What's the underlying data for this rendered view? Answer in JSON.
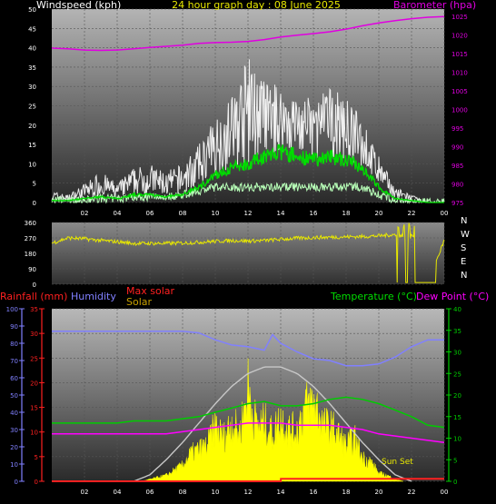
{
  "header": {
    "title": "24 hour graph day : 08 June 2025"
  },
  "colors": {
    "wind": "#ffffff",
    "gust_avg": "#00dd00",
    "light_wind": "#b8ffb8",
    "barometer": "#e000e0",
    "direction": "#e8e800",
    "rainfall": "#ff2020",
    "humidity": "#8080ff",
    "temperature": "#00cc00",
    "dew_point": "#ff00ff",
    "solar": "#ffff00",
    "max_solar": "#c8c8c8",
    "axis_text": "#ffffff"
  },
  "chart_data": [
    {
      "type": "line",
      "name": "wind",
      "left_axis_label": "Windspeed (kph)",
      "right_axis_label": "Barometer (hpa)",
      "x_ticks": [
        "02",
        "04",
        "06",
        "08",
        "10",
        "12",
        "14",
        "16",
        "18",
        "20",
        "22",
        "00"
      ],
      "left_ticks": [
        "0",
        "5",
        "10",
        "15",
        "20",
        "25",
        "30",
        "35",
        "40",
        "45",
        "50"
      ],
      "right_ticks": [
        "975",
        "980",
        "985",
        "990",
        "995",
        "1000",
        "1005",
        "1010",
        "1015",
        "1020",
        "1025"
      ],
      "ylim_left": [
        0,
        50
      ],
      "ylim_right": [
        975,
        1027
      ],
      "series": [
        {
          "key": "barometer",
          "axis": "right",
          "x": [
            0,
            1,
            2,
            3,
            4,
            5,
            6,
            7,
            8,
            9,
            10,
            11,
            12,
            13,
            14,
            15,
            16,
            17,
            18,
            19,
            20,
            21,
            22,
            23,
            24
          ],
          "values": [
            1016.5,
            1016.3,
            1016.0,
            1015.9,
            1016.0,
            1016.3,
            1016.7,
            1017.0,
            1017.3,
            1017.8,
            1018.0,
            1018.1,
            1018.3,
            1018.8,
            1019.5,
            1020.0,
            1020.4,
            1020.9,
            1021.6,
            1022.5,
            1023.3,
            1023.9,
            1024.4,
            1024.8,
            1025.0
          ]
        },
        {
          "key": "wind_avg",
          "axis": "left",
          "x": [
            0,
            1,
            2,
            3,
            4,
            5,
            6,
            7,
            8,
            9,
            10,
            11,
            12,
            13,
            14,
            15,
            16,
            17,
            18,
            19,
            20,
            21,
            22,
            23,
            24
          ],
          "values": [
            0.5,
            0.5,
            1,
            1.5,
            1,
            2,
            2,
            1.5,
            2,
            4,
            7,
            9,
            10,
            12,
            13,
            12,
            11,
            12,
            11,
            9,
            4,
            1,
            0.5,
            0,
            0
          ]
        },
        {
          "key": "wind_gust",
          "axis": "left",
          "x": [
            0,
            1,
            2,
            3,
            4,
            5,
            6,
            7,
            8,
            9,
            10,
            11,
            12,
            13,
            14,
            15,
            16,
            17,
            18,
            19,
            20,
            21,
            22,
            23,
            24
          ],
          "values": [
            3,
            2,
            5,
            8,
            5,
            9,
            10,
            8,
            10,
            15,
            22,
            28,
            38,
            32,
            30,
            28,
            27,
            30,
            27,
            22,
            12,
            4,
            2,
            0,
            0
          ]
        },
        {
          "key": "wind_light",
          "axis": "left",
          "x": [
            0,
            1,
            2,
            3,
            4,
            5,
            6,
            7,
            8,
            9,
            10,
            11,
            12,
            13,
            14,
            15,
            16,
            17,
            18,
            19,
            20,
            21,
            22,
            23,
            24
          ],
          "values": [
            0.5,
            0.5,
            0.5,
            1,
            1,
            1.5,
            1.5,
            1.5,
            2,
            3,
            4,
            4,
            4,
            4,
            4,
            4,
            4,
            4,
            4,
            4,
            2,
            0.5,
            0,
            0,
            0
          ]
        }
      ]
    },
    {
      "type": "line",
      "name": "direction",
      "left_ticks": [
        "0",
        "90",
        "180",
        "270",
        "360"
      ],
      "right_ticks": [
        "N",
        "W",
        "S",
        "E",
        "N"
      ],
      "ylim": [
        0,
        360
      ],
      "series": [
        {
          "key": "direction",
          "x": [
            0,
            1,
            2,
            3,
            4,
            5,
            6,
            7,
            8,
            9,
            10,
            11,
            12,
            13,
            14,
            15,
            16,
            17,
            18,
            19,
            20,
            21,
            22,
            23,
            24
          ],
          "values": [
            240,
            270,
            265,
            255,
            248,
            238,
            238,
            238,
            240,
            245,
            250,
            255,
            252,
            255,
            262,
            268,
            272,
            274,
            276,
            278,
            282,
            290,
            30,
            10,
            255
          ]
        }
      ]
    },
    {
      "type": "line",
      "name": "temperature",
      "legend": [
        "Rainfall (mm)",
        "Humidity",
        "Max solar",
        "Solar",
        "Temperature (°C)",
        "Dew Point (°C)"
      ],
      "x_ticks": [
        "02",
        "04",
        "06",
        "08",
        "10",
        "12",
        "14",
        "16",
        "18",
        "20",
        "22",
        "00"
      ],
      "humidity_ticks": [
        "0",
        "10",
        "20",
        "30",
        "40",
        "50",
        "60",
        "70",
        "80",
        "90",
        "100"
      ],
      "rain_ticks": [
        "0",
        "5",
        "10",
        "15",
        "20",
        "25",
        "30",
        "35"
      ],
      "temp_ticks": [
        "0",
        "5",
        "10",
        "15",
        "20",
        "25",
        "30",
        "35",
        "40"
      ],
      "ylim_humidity": [
        0,
        100
      ],
      "ylim_rain": [
        0,
        35
      ],
      "ylim_temp": [
        0,
        40
      ],
      "annotation": "Sun Set",
      "series": [
        {
          "key": "humidity",
          "axis": "humidity",
          "x": [
            0,
            1,
            2,
            3,
            4,
            5,
            6,
            7,
            8,
            9,
            10,
            11,
            12,
            13,
            13.5,
            14,
            15,
            16,
            17,
            18,
            19,
            20,
            21,
            22,
            23,
            24
          ],
          "values": [
            87,
            87,
            87,
            87,
            87,
            87,
            87,
            87,
            87,
            86,
            82,
            79,
            78,
            76,
            85,
            80,
            75,
            71,
            70,
            67,
            67,
            68,
            72,
            78,
            82,
            82
          ]
        },
        {
          "key": "temperature",
          "axis": "temp",
          "x": [
            0,
            1,
            2,
            3,
            4,
            5,
            6,
            7,
            8,
            9,
            10,
            11,
            12,
            13,
            14,
            15,
            16,
            17,
            18,
            19,
            20,
            21,
            22,
            23,
            24
          ],
          "values": [
            13.5,
            13.5,
            13.5,
            13.5,
            13.5,
            14,
            14,
            14,
            14.5,
            15,
            16,
            17,
            18,
            18.5,
            17.5,
            17.5,
            18,
            19,
            19.5,
            19,
            18,
            16.5,
            15,
            13,
            12.5
          ]
        },
        {
          "key": "dew_point",
          "axis": "temp",
          "x": [
            0,
            1,
            2,
            3,
            4,
            5,
            6,
            7,
            8,
            9,
            10,
            11,
            12,
            13,
            14,
            15,
            16,
            17,
            18,
            19,
            20,
            21,
            22,
            23,
            24
          ],
          "values": [
            11,
            11,
            11,
            11,
            11,
            11,
            11,
            11,
            11.5,
            12,
            12.5,
            13,
            13.5,
            13.5,
            13.5,
            13,
            13,
            13,
            12.5,
            12,
            11,
            10.5,
            10,
            9.5,
            9
          ]
        },
        {
          "key": "max_solar",
          "axis": "temp",
          "x": [
            5,
            6,
            7,
            8,
            9,
            10,
            11,
            12,
            13,
            14,
            15,
            16,
            17,
            18,
            19,
            20,
            21,
            22
          ],
          "values": [
            0,
            1.5,
            5,
            9,
            13.5,
            18,
            22,
            25,
            26.5,
            26.5,
            25,
            22,
            18,
            13.5,
            9,
            5,
            1.5,
            0
          ]
        },
        {
          "key": "solar",
          "axis": "temp",
          "x": [
            5.5,
            6,
            7,
            8,
            8.5,
            9,
            9.5,
            10,
            10.5,
            11,
            11.5,
            12,
            12.3,
            12.6,
            13,
            13.5,
            14,
            14.5,
            15,
            15.5,
            16,
            16.3,
            16.6,
            17,
            17.5,
            18,
            18.5,
            19,
            19.5,
            20,
            20.5,
            21,
            21.5
          ],
          "values": [
            0,
            0.5,
            1.5,
            4,
            7,
            8,
            9,
            14,
            11,
            15,
            12,
            24,
            17,
            14,
            15,
            12,
            16,
            13,
            13,
            19,
            20,
            18,
            14,
            14,
            12,
            9,
            11,
            6,
            5,
            2,
            1.5,
            0.5,
            0
          ]
        },
        {
          "key": "rainfall",
          "axis": "rain",
          "x": [
            0,
            14,
            14.01,
            24
          ],
          "values": [
            0,
            0,
            0.5,
            0.5
          ]
        }
      ]
    }
  ]
}
